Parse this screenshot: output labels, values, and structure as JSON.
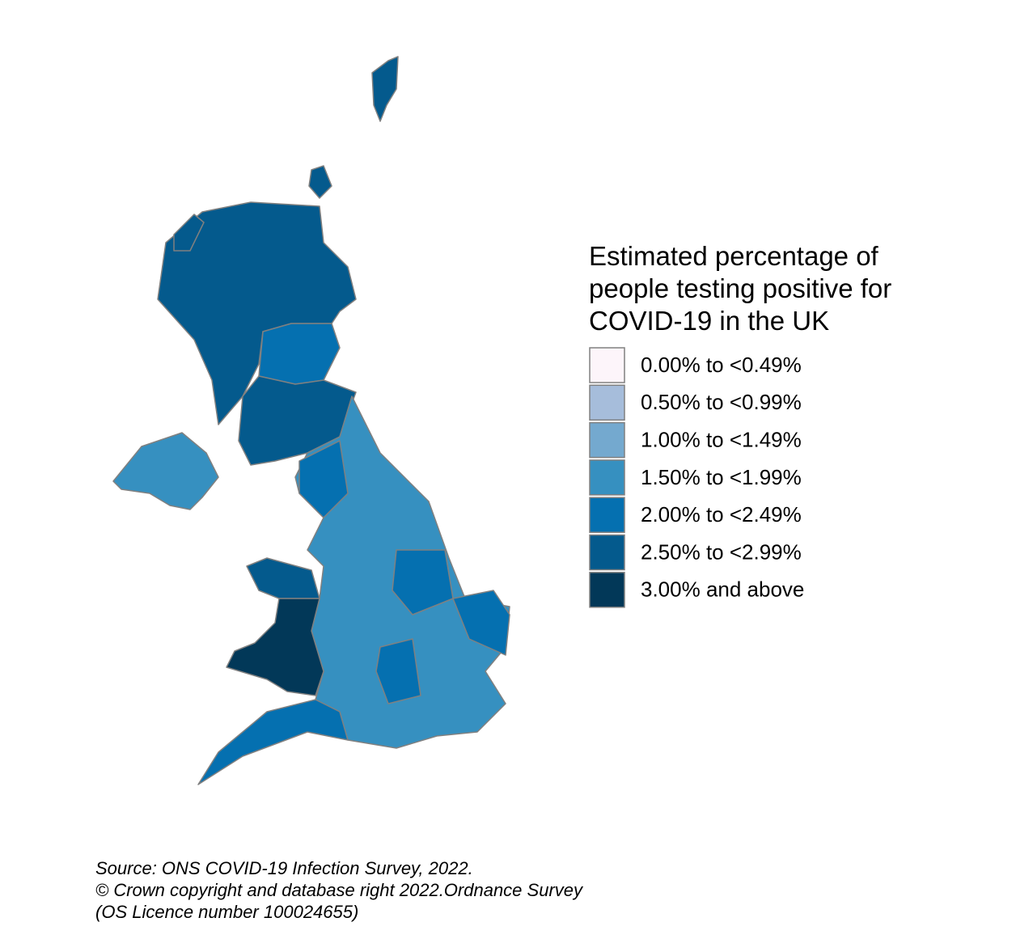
{
  "legend": {
    "title_lines": [
      "Estimated percentage of",
      "people testing positive for",
      "COVID-19 in the UK"
    ],
    "items": [
      {
        "label": "0.00% to <0.49%",
        "color": "#fdf5fa"
      },
      {
        "label": "0.50% to <0.99%",
        "color": "#a6bddb"
      },
      {
        "label": "1.00% to <1.49%",
        "color": "#74a9cf"
      },
      {
        "label": "1.50% to <1.99%",
        "color": "#3690c0"
      },
      {
        "label": "2.00% to <2.49%",
        "color": "#0570b0"
      },
      {
        "label": "2.50% to <2.99%",
        "color": "#045a8d"
      },
      {
        "label": "3.00% and above",
        "color": "#023858"
      }
    ]
  },
  "source_lines": [
    "Source: ONS COVID-19 Infection Survey, 2022.",
    "© Crown copyright and database right 2022.Ordnance Survey",
    "(OS Licence number 100024655)"
  ]
}
